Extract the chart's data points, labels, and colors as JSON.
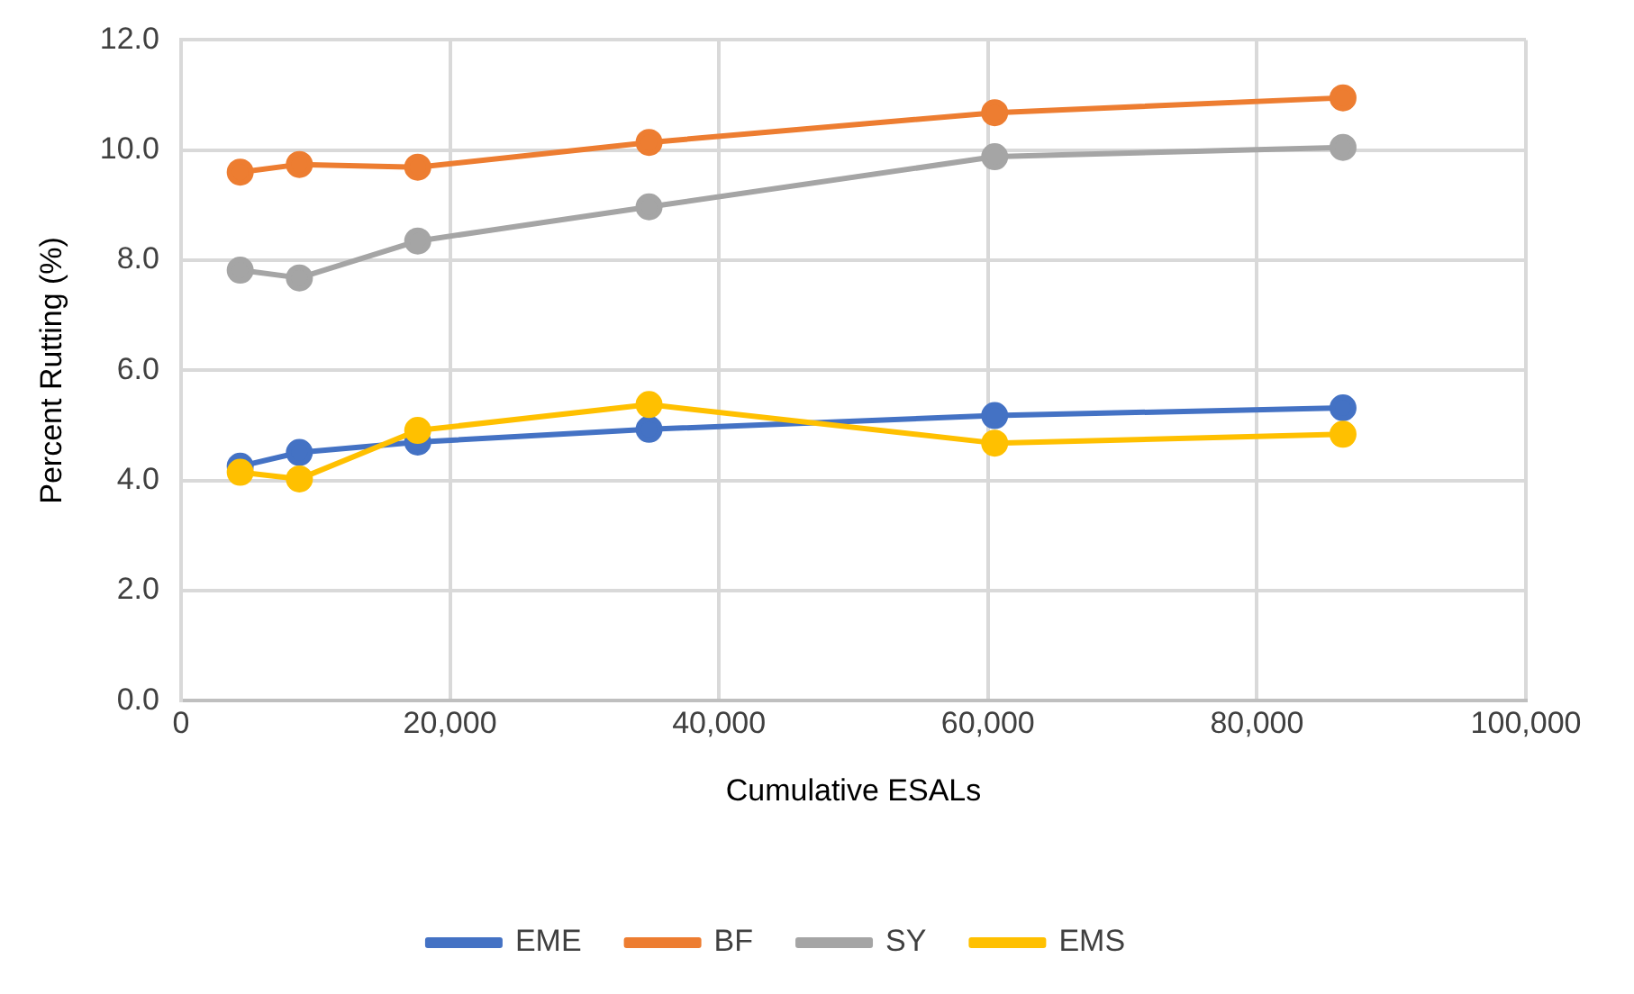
{
  "chart_data": {
    "type": "line",
    "xlabel": "Cumulative ESALs",
    "ylabel": "Percent Rutting (%)",
    "x": [
      4400,
      8800,
      17600,
      34800,
      60500,
      86400
    ],
    "xlim": [
      0,
      100000
    ],
    "xticks": [
      {
        "value": 0,
        "label": "0"
      },
      {
        "value": 20000,
        "label": "20,000"
      },
      {
        "value": 40000,
        "label": "40,000"
      },
      {
        "value": 60000,
        "label": "60,000"
      },
      {
        "value": 80000,
        "label": "80,000"
      },
      {
        "value": 100000,
        "label": "100,000"
      }
    ],
    "ylim": [
      0,
      12
    ],
    "yticks": [
      {
        "value": 0,
        "label": "0.0"
      },
      {
        "value": 2,
        "label": "2.0"
      },
      {
        "value": 4,
        "label": "4.0"
      },
      {
        "value": 6,
        "label": "6.0"
      },
      {
        "value": 8,
        "label": "8.0"
      },
      {
        "value": 10,
        "label": "10.0"
      },
      {
        "value": 12,
        "label": "12.0"
      }
    ],
    "grid": true,
    "legend": "bottom",
    "marker": "circle",
    "line_style": "solid",
    "series": [
      {
        "name": "EME",
        "color": "#4472c4",
        "values": [
          4.26,
          4.51,
          4.7,
          4.93,
          5.18,
          5.32
        ]
      },
      {
        "name": "BF",
        "color": "#ed7d31",
        "values": [
          9.6,
          9.74,
          9.69,
          10.14,
          10.68,
          10.95
        ]
      },
      {
        "name": "SY",
        "color": "#a5a5a5",
        "values": [
          7.82,
          7.68,
          8.35,
          8.97,
          9.88,
          10.05
        ]
      },
      {
        "name": "EMS",
        "color": "#ffc000",
        "values": [
          4.15,
          4.03,
          4.91,
          5.38,
          4.68,
          4.84
        ]
      }
    ]
  }
}
